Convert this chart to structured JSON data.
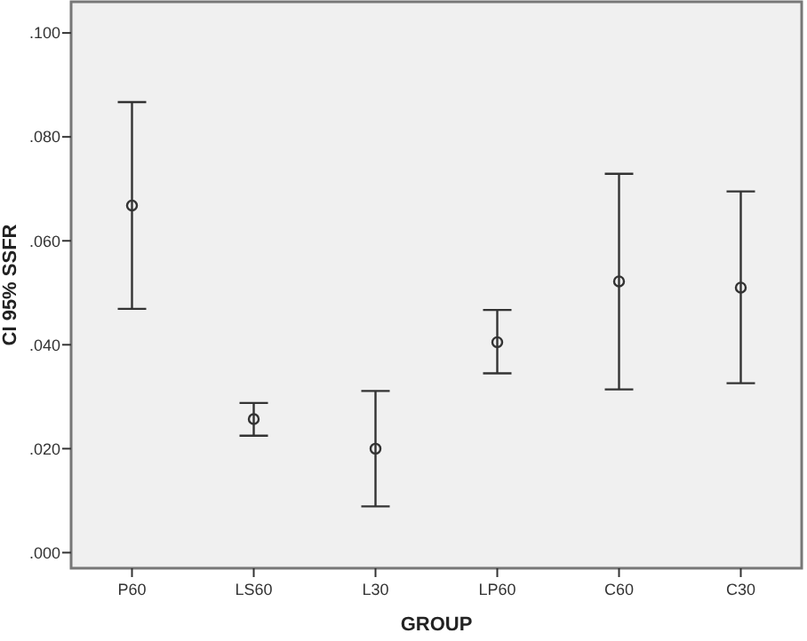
{
  "chart_data": {
    "type": "scatter",
    "xlabel": "GROUP",
    "ylabel": "CI 95% SSFR",
    "categories": [
      "P60",
      "LS60",
      "L30",
      "LP60",
      "C60",
      "C30"
    ],
    "series": [
      {
        "color": "#333333",
        "values": [
          0.0668,
          0.0257,
          0.02,
          0.0405,
          0.0522,
          0.051
        ],
        "errors": [
          [
            0.0469,
            0.0867
          ],
          [
            0.0225,
            0.0288
          ],
          [
            0.0089,
            0.0311
          ],
          [
            0.0345,
            0.0467
          ],
          [
            0.0314,
            0.0729
          ],
          [
            0.0326,
            0.0695
          ]
        ]
      }
    ],
    "ylim": [
      -0.003,
      0.106
    ],
    "yticks": [
      {
        "value": 0,
        "label": ".000"
      },
      {
        "value": 0.02,
        "label": ".020"
      },
      {
        "value": 0.04,
        "label": ".040"
      },
      {
        "value": 0.06,
        "label": ".060"
      },
      {
        "value": 0.08,
        "label": ".080"
      },
      {
        "value": 0.1,
        "label": ".100"
      }
    ],
    "marker": "circle",
    "grid": false
  }
}
